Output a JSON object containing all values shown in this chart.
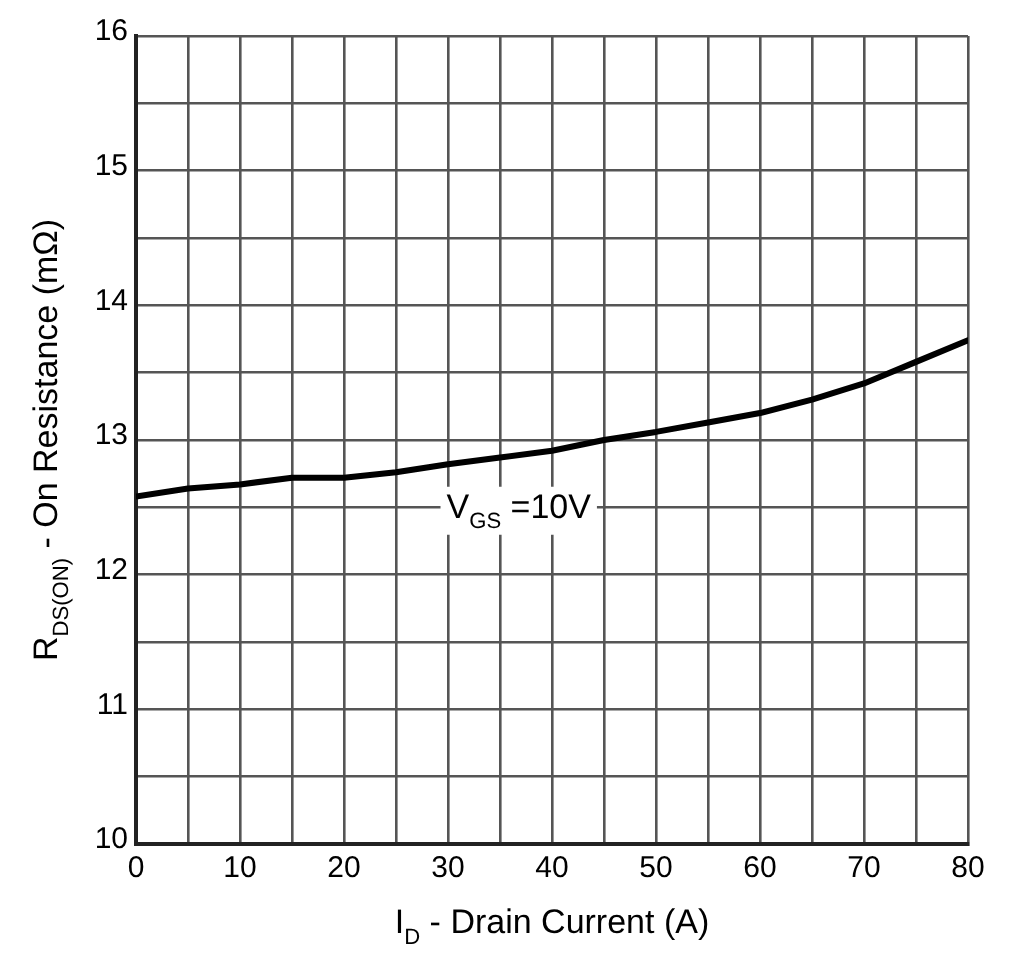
{
  "chart_data": {
    "type": "line",
    "xlabel": "I$_{D}$ - Drain Current (A)",
    "ylabel": "R$_{DS(ON)}$ - On Resistance (mΩ)",
    "x": [
      0,
      5,
      10,
      15,
      20,
      25,
      30,
      35,
      40,
      45,
      50,
      55,
      60,
      65,
      70,
      75,
      80
    ],
    "series": [
      {
        "color": "#000000",
        "values": [
          12.58,
          12.64,
          12.67,
          12.72,
          12.72,
          12.76,
          12.82,
          12.87,
          12.92,
          13.0,
          13.06,
          13.13,
          13.2,
          13.3,
          13.42,
          13.58,
          13.74
        ]
      }
    ],
    "xlim": [
      0,
      80
    ],
    "xticks": [
      0,
      {
        "value": 5,
        "label": null
      },
      10,
      {
        "value": 15,
        "label": null
      },
      20,
      {
        "value": 25,
        "label": null
      },
      30,
      {
        "value": 35,
        "label": null
      },
      40,
      {
        "value": 45,
        "label": null
      },
      50,
      {
        "value": 55,
        "label": null
      },
      60,
      {
        "value": 65,
        "label": null
      },
      70,
      {
        "value": 75,
        "label": null
      },
      80
    ],
    "ylim": [
      10,
      16
    ],
    "yticks": [
      10,
      {
        "value": 10.5,
        "label": null
      },
      11,
      {
        "value": 11.5,
        "label": null
      },
      12,
      {
        "value": 12.5,
        "label": null
      },
      13,
      {
        "value": 13.5,
        "label": null
      },
      14,
      {
        "value": 14.5,
        "label": null
      },
      15,
      {
        "value": 15.5,
        "label": null
      },
      16
    ],
    "grid": true,
    "marker": "none",
    "line_style": "solid",
    "legend": false,
    "annotations": [
      "V$_{GS}$ =10V"
    ]
  }
}
